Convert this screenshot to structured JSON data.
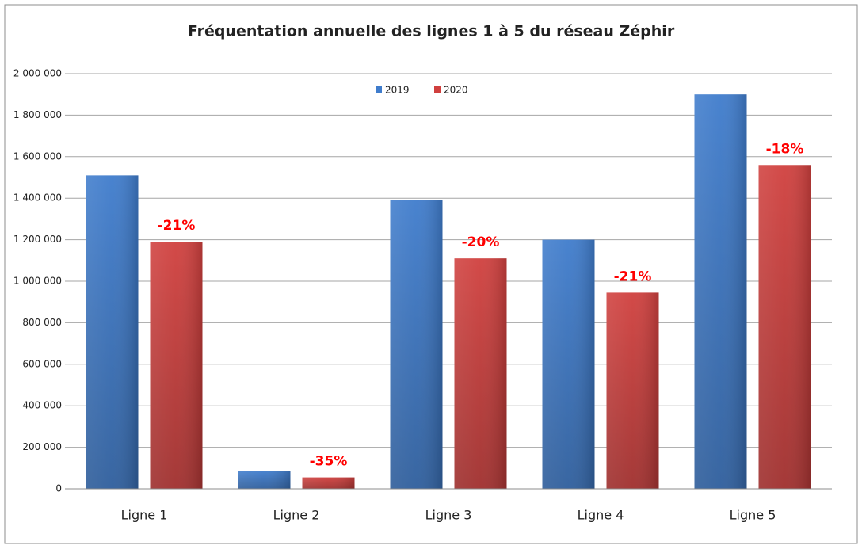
{
  "chart_data": {
    "type": "bar",
    "title": "Fréquentation annuelle des lignes 1 à 5 du réseau Zéphir",
    "categories": [
      "Ligne 1",
      "Ligne 2",
      "Ligne 3",
      "Ligne 4",
      "Ligne 5"
    ],
    "series": [
      {
        "name": "2019",
        "color": "#3f7ccc",
        "values": [
          1510000,
          85000,
          1390000,
          1200000,
          1900000
        ]
      },
      {
        "name": "2020",
        "color": "#d0403e",
        "values": [
          1190000,
          55000,
          1110000,
          945000,
          1560000
        ],
        "annotations": [
          "-21%",
          "-35%",
          "-20%",
          "-21%",
          "-18%"
        ],
        "annotation_color": "#ff0000"
      }
    ],
    "ylim": [
      0,
      2000000
    ],
    "yticks": [
      0,
      {
        "value": 200000,
        "label": "200 000"
      },
      {
        "value": 400000,
        "label": "400 000"
      },
      {
        "value": 600000,
        "label": "600 000"
      },
      {
        "value": 800000,
        "label": "800 000"
      },
      {
        "value": 1000000,
        "label": "1 000 000"
      },
      {
        "value": 1200000,
        "label": "1 200 000"
      },
      {
        "value": 1400000,
        "label": "1 400 000"
      },
      {
        "value": 1600000,
        "label": "1 600 000"
      },
      {
        "value": 1800000,
        "label": "1 800 000"
      },
      {
        "value": 2000000,
        "label": "2 000 000"
      }
    ],
    "grid": true,
    "legend": "top"
  }
}
